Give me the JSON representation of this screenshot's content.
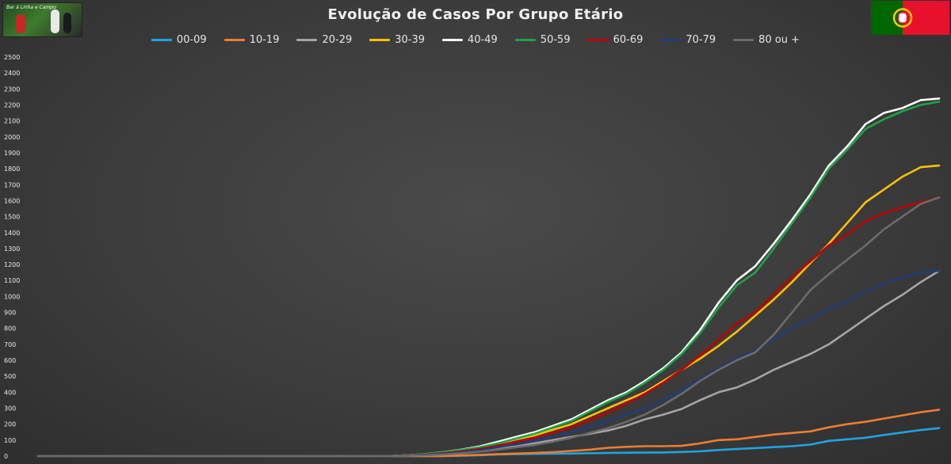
{
  "chart_data": {
    "type": "line",
    "title": "Evolução de Casos Por Grupo Etário",
    "ylim": [
      0,
      2500
    ],
    "yticks": [
      0,
      100,
      200,
      300,
      400,
      500,
      600,
      700,
      800,
      900,
      1000,
      1100,
      1200,
      1300,
      1400,
      1500,
      1600,
      1700,
      1800,
      1900,
      2000,
      2100,
      2200,
      2300,
      2400,
      2500
    ],
    "grid": false,
    "legend": "top-center",
    "x": [
      1,
      2,
      3,
      4,
      5,
      6,
      7,
      8,
      9,
      10,
      11,
      12,
      13,
      14,
      15,
      16,
      17,
      18,
      19,
      20,
      21,
      22,
      23,
      24,
      25,
      26,
      27,
      28,
      29,
      30,
      31,
      32,
      33,
      34,
      35,
      36,
      37,
      38,
      39,
      40,
      41,
      42,
      43,
      44,
      45,
      46,
      47,
      48,
      49,
      50
    ],
    "series": [
      {
        "name": "00-09",
        "color": "#1fa4e0",
        "values": [
          0,
          0,
          0,
          0,
          0,
          0,
          0,
          0,
          0,
          0,
          0,
          0,
          0,
          0,
          0,
          0,
          0,
          0,
          0,
          0,
          0,
          0,
          0,
          2,
          5,
          10,
          12,
          14,
          15,
          16,
          18,
          20,
          21,
          22,
          23,
          26,
          30,
          38,
          44,
          50,
          56,
          62,
          72,
          95,
          105,
          115,
          132,
          148,
          163,
          175
        ]
      },
      {
        "name": "10-19",
        "color": "#ed7d31",
        "values": [
          0,
          0,
          0,
          0,
          0,
          0,
          0,
          0,
          0,
          0,
          0,
          0,
          0,
          0,
          0,
          0,
          0,
          0,
          0,
          0,
          0,
          0,
          0,
          4,
          8,
          12,
          16,
          20,
          25,
          32,
          40,
          52,
          58,
          62,
          62,
          64,
          80,
          100,
          105,
          120,
          135,
          145,
          155,
          180,
          200,
          215,
          235,
          255,
          275,
          290
        ]
      },
      {
        "name": "20-29",
        "color": "#a5a5a5",
        "values": [
          0,
          0,
          0,
          0,
          0,
          0,
          0,
          0,
          0,
          0,
          0,
          0,
          0,
          0,
          0,
          0,
          0,
          0,
          0,
          0,
          2,
          5,
          10,
          18,
          30,
          45,
          60,
          80,
          100,
          120,
          140,
          160,
          190,
          230,
          260,
          295,
          350,
          400,
          430,
          480,
          540,
          590,
          640,
          700,
          780,
          860,
          940,
          1010,
          1090,
          1160
        ]
      },
      {
        "name": "30-39",
        "color": "#ffc000",
        "values": [
          0,
          0,
          0,
          0,
          0,
          0,
          0,
          0,
          0,
          0,
          0,
          0,
          0,
          0,
          0,
          0,
          0,
          0,
          0,
          0,
          5,
          10,
          20,
          35,
          55,
          80,
          105,
          130,
          165,
          200,
          250,
          300,
          350,
          400,
          470,
          540,
          610,
          690,
          780,
          880,
          980,
          1090,
          1210,
          1330,
          1460,
          1590,
          1670,
          1750,
          1810,
          1820
        ]
      },
      {
        "name": "40-49",
        "color": "#ffffff",
        "values": [
          0,
          0,
          0,
          0,
          0,
          0,
          0,
          0,
          0,
          0,
          0,
          0,
          0,
          0,
          0,
          0,
          0,
          0,
          0,
          0,
          5,
          12,
          25,
          40,
          60,
          90,
          120,
          150,
          190,
          230,
          290,
          350,
          400,
          470,
          550,
          650,
          790,
          960,
          1100,
          1190,
          1330,
          1480,
          1640,
          1820,
          1940,
          2080,
          2150,
          2180,
          2230,
          2240
        ]
      },
      {
        "name": "50-59",
        "color": "#1ea446",
        "values": [
          0,
          0,
          0,
          0,
          0,
          0,
          0,
          0,
          0,
          0,
          0,
          0,
          0,
          0,
          0,
          0,
          0,
          0,
          0,
          0,
          5,
          12,
          25,
          38,
          55,
          80,
          110,
          140,
          180,
          220,
          280,
          340,
          390,
          460,
          540,
          640,
          770,
          930,
          1070,
          1150,
          1300,
          1460,
          1620,
          1800,
          1920,
          2050,
          2110,
          2160,
          2200,
          2220
        ]
      },
      {
        "name": "60-69",
        "color": "#c00000",
        "values": [
          0,
          0,
          0,
          0,
          0,
          0,
          0,
          0,
          0,
          0,
          0,
          0,
          0,
          0,
          0,
          0,
          0,
          0,
          0,
          0,
          4,
          9,
          18,
          30,
          45,
          65,
          90,
          115,
          145,
          180,
          225,
          275,
          330,
          390,
          460,
          540,
          630,
          730,
          830,
          900,
          1010,
          1120,
          1220,
          1320,
          1390,
          1470,
          1520,
          1560,
          1590,
          1620
        ]
      },
      {
        "name": "70-79",
        "color": "#1f3d7a",
        "values": [
          0,
          0,
          0,
          0,
          0,
          0,
          0,
          0,
          0,
          0,
          0,
          0,
          0,
          0,
          0,
          0,
          0,
          0,
          0,
          0,
          3,
          7,
          14,
          24,
          38,
          55,
          75,
          95,
          120,
          150,
          185,
          220,
          260,
          300,
          350,
          410,
          480,
          550,
          610,
          660,
          730,
          800,
          860,
          920,
          970,
          1030,
          1080,
          1120,
          1150,
          1160
        ]
      },
      {
        "name": "80 ou +",
        "color": "#6b6b6b",
        "values": [
          0,
          0,
          0,
          0,
          0,
          0,
          0,
          0,
          0,
          0,
          0,
          0,
          0,
          0,
          0,
          0,
          0,
          0,
          0,
          0,
          2,
          5,
          10,
          18,
          28,
          40,
          55,
          70,
          90,
          115,
          145,
          175,
          215,
          260,
          320,
          390,
          470,
          540,
          600,
          650,
          760,
          900,
          1040,
          1140,
          1230,
          1320,
          1420,
          1500,
          1580,
          1620
        ]
      }
    ]
  },
  "flag": {
    "green": "#006600",
    "red": "#e8112d",
    "gold": "#ffcc00"
  },
  "logo": {
    "text": "Bar à Linha e Campo"
  }
}
